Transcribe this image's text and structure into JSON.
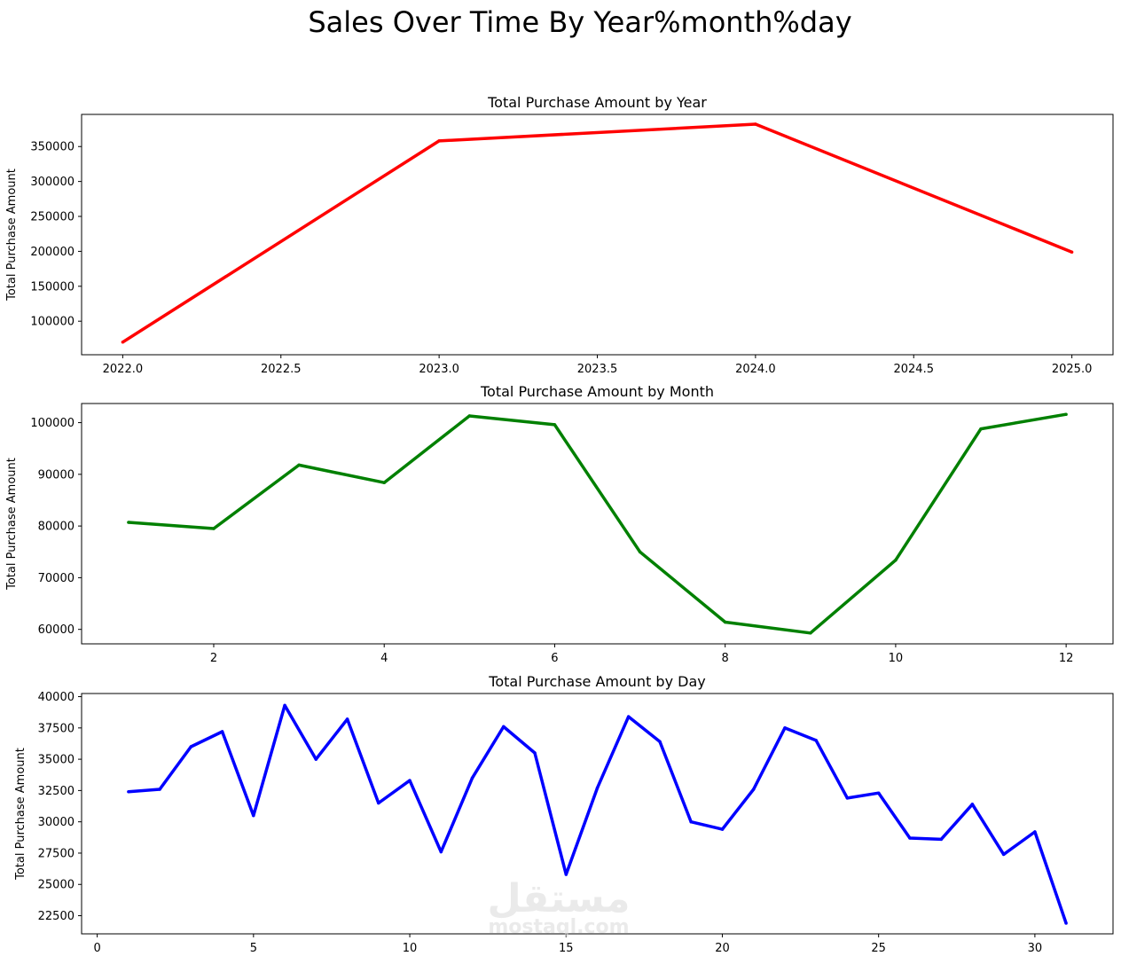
{
  "figure_title": "Sales Over Time By Year%month%day",
  "watermark": {
    "arabic": "مستقل",
    "latin": "mostaql.com"
  },
  "chart_data": [
    {
      "type": "line",
      "title": "Total Purchase Amount by Year",
      "xlabel": "",
      "ylabel": "Total Purchase Amount",
      "color": "#ff0000",
      "x": [
        2022,
        2023,
        2024,
        2025
      ],
      "y": [
        70000,
        358000,
        382000,
        199000
      ],
      "xlim": [
        2021.87,
        2025.13
      ],
      "ylim": [
        52000,
        396000
      ],
      "xticks": [
        2022.0,
        2022.5,
        2023.0,
        2023.5,
        2024.0,
        2024.5,
        2025.0
      ],
      "xtick_labels": [
        "2022.0",
        "2022.5",
        "2023.0",
        "2023.5",
        "2024.0",
        "2024.5",
        "2025.0"
      ],
      "yticks": [
        100000,
        150000,
        200000,
        250000,
        300000,
        350000
      ],
      "ytick_labels": [
        "100000",
        "150000",
        "200000",
        "250000",
        "300000",
        "350000"
      ],
      "grid": false
    },
    {
      "type": "line",
      "title": "Total Purchase Amount by Month",
      "xlabel": "",
      "ylabel": "Total Purchase Amount",
      "color": "#008000",
      "x": [
        1,
        2,
        3,
        4,
        5,
        6,
        7,
        8,
        9,
        10,
        11,
        12
      ],
      "y": [
        80700,
        79500,
        91800,
        88400,
        101300,
        99600,
        75000,
        61400,
        59300,
        73400,
        98800,
        101600
      ],
      "xlim": [
        0.45,
        12.55
      ],
      "ylim": [
        57200,
        103700
      ],
      "xticks": [
        2,
        4,
        6,
        8,
        10,
        12
      ],
      "xtick_labels": [
        "2",
        "4",
        "6",
        "8",
        "10",
        "12"
      ],
      "yticks": [
        60000,
        70000,
        80000,
        90000,
        100000
      ],
      "ytick_labels": [
        "60000",
        "70000",
        "80000",
        "90000",
        "100000"
      ],
      "grid": false
    },
    {
      "type": "line",
      "title": "Total Purchase Amount by Day",
      "xlabel": "",
      "ylabel": "Total Purchase Amount",
      "color": "#0000ff",
      "x": [
        1,
        2,
        3,
        4,
        5,
        6,
        7,
        8,
        9,
        10,
        11,
        12,
        13,
        14,
        15,
        16,
        17,
        18,
        19,
        20,
        21,
        22,
        23,
        24,
        25,
        26,
        27,
        28,
        29,
        30,
        31
      ],
      "y": [
        32400,
        32600,
        36000,
        37200,
        30500,
        39300,
        35000,
        38200,
        31500,
        33300,
        27600,
        33500,
        37600,
        35500,
        25800,
        32700,
        38400,
        36400,
        30000,
        29400,
        32600,
        37500,
        36500,
        31900,
        32300,
        28700,
        28600,
        31400,
        27400,
        29200,
        21900
      ],
      "xlim": [
        -0.5,
        32.5
      ],
      "ylim": [
        21050,
        40250
      ],
      "xticks": [
        0,
        5,
        10,
        15,
        20,
        25,
        30
      ],
      "xtick_labels": [
        "0",
        "5",
        "10",
        "15",
        "20",
        "25",
        "30"
      ],
      "yticks": [
        22500,
        25000,
        27500,
        30000,
        32500,
        35000,
        37500,
        40000
      ],
      "ytick_labels": [
        "22500",
        "25000",
        "27500",
        "30000",
        "32500",
        "35000",
        "37500",
        "40000"
      ],
      "grid": false
    }
  ]
}
